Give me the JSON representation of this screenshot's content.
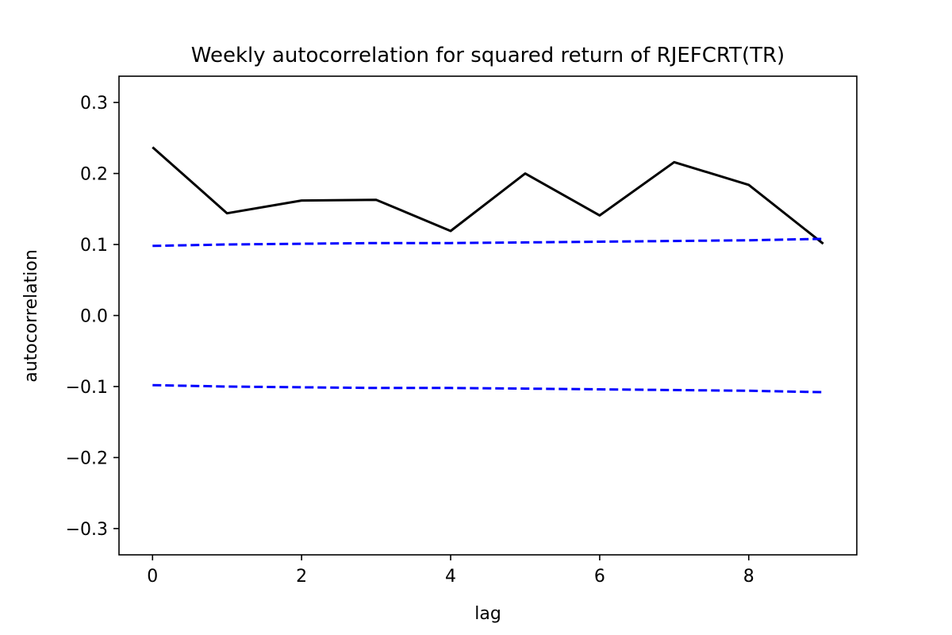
{
  "chart_data": {
    "type": "line",
    "title": "Weekly autocorrelation for squared return of RJEFCRT(TR)",
    "xlabel": "lag",
    "ylabel": "autocorrelation",
    "xlim": [
      -0.45,
      9.45
    ],
    "ylim": [
      -0.337,
      0.337
    ],
    "x_ticks": [
      0,
      2,
      4,
      6,
      8
    ],
    "y_ticks": [
      -0.3,
      -0.2,
      -0.1,
      0.0,
      0.1,
      0.2,
      0.3
    ],
    "x_tick_labels": [
      "0",
      "2",
      "4",
      "6",
      "8"
    ],
    "y_tick_labels": [
      "−0.3",
      "−0.2",
      "−0.1",
      "0.0",
      "0.1",
      "0.2",
      "0.3"
    ],
    "grid": false,
    "x": [
      0,
      1,
      2,
      3,
      4,
      5,
      6,
      7,
      8,
      9
    ],
    "series": [
      {
        "color": "#000000",
        "style": "solid",
        "values": [
          0.237,
          0.144,
          0.162,
          0.163,
          0.119,
          0.2,
          0.141,
          0.216,
          0.184,
          0.101
        ]
      },
      {
        "color": "#0000ff",
        "style": "dashed",
        "values": [
          0.098,
          0.1,
          0.101,
          0.102,
          0.102,
          0.103,
          0.104,
          0.105,
          0.106,
          0.108
        ]
      },
      {
        "color": "#0000ff",
        "style": "dashed",
        "values": [
          -0.098,
          -0.1,
          -0.101,
          -0.102,
          -0.102,
          -0.103,
          -0.104,
          -0.105,
          -0.106,
          -0.108
        ]
      }
    ]
  }
}
